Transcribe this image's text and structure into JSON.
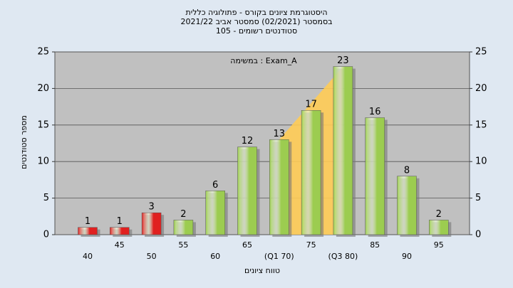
{
  "chart_data": {
    "type": "bar",
    "title": [
      "היסטוגרמת ציונים בקורס - פתולוגיה כללית",
      "בסמסטר  (02/2021)  סמסטר אביב 2021/22",
      "סטודנטים רשומים - 105"
    ],
    "annotation": "במשימה : Exam_A",
    "y_label": "מספר סטודנטים",
    "x_label": "טווח ציונים",
    "categories": [
      "40",
      "45",
      "50",
      "55",
      "60",
      "65",
      "(Q1 70)",
      "75",
      "(Q3 80)",
      "85",
      "90",
      "95"
    ],
    "values": [
      1,
      1,
      3,
      2,
      6,
      12,
      13,
      17,
      23,
      16,
      8,
      2
    ],
    "colors": [
      "#e02020",
      "#e02020",
      "#e02020",
      "#9ccc50",
      "#9ccc50",
      "#9ccc50",
      "#9ccc50",
      "#9ccc50",
      "#9ccc50",
      "#9ccc50",
      "#9ccc50",
      "#9ccc50"
    ],
    "ylim": [
      0,
      25
    ],
    "yticks": [
      0,
      5,
      10,
      15,
      20,
      25
    ],
    "y2lim": [
      0,
      25
    ],
    "y2ticks": [
      0,
      5,
      10,
      15,
      20,
      25
    ],
    "grid": true
  }
}
